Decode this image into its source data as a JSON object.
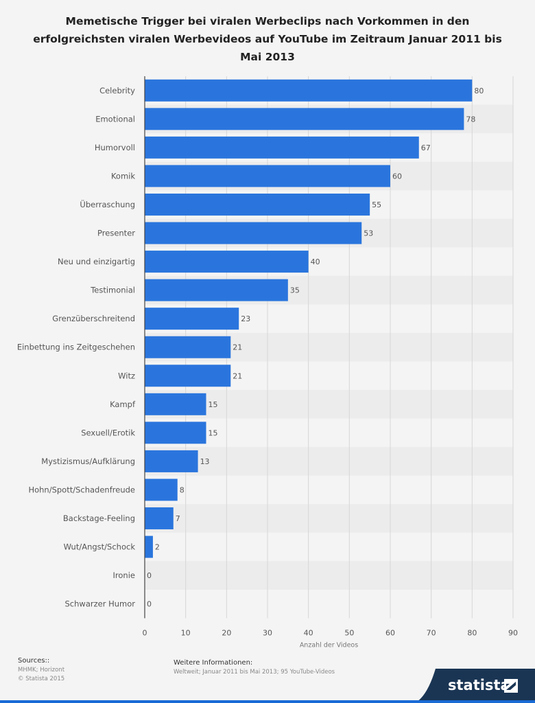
{
  "title": "Memetische Trigger bei viralen Werbeclips nach Vorkommen in den erfolgreichsten viralen Werbevideos auf YouTube im Zeitraum Januar 2011 bis Mai 2013",
  "colors": {
    "bar": "#2a75dd",
    "band": "#ececec",
    "grid": "#d6d6d6",
    "brand": "#1a3554"
  },
  "chart_data": {
    "type": "bar",
    "orientation": "horizontal",
    "categories": [
      "Celebrity",
      "Emotional",
      "Humorvoll",
      "Komik",
      "Überraschung",
      "Presenter",
      "Neu und einzigartig",
      "Testimonial",
      "Grenzüberschreitend",
      "Einbettung ins Zeitgeschehen",
      "Witz",
      "Kampf",
      "Sexuell/Erotik",
      "Mystizismus/Aufklärung",
      "Hohn/Spott/Schadenfreude",
      "Backstage-Feeling",
      "Wut/Angst/Schock",
      "Ironie",
      "Schwarzer Humor"
    ],
    "values": [
      80,
      78,
      67,
      60,
      55,
      53,
      40,
      35,
      23,
      21,
      21,
      15,
      15,
      13,
      8,
      7,
      2,
      0,
      0
    ],
    "xlabel": "Anzahl der Videos",
    "xlim": [
      0,
      90
    ],
    "xticks": [
      0,
      10,
      20,
      30,
      40,
      50,
      60,
      70,
      80,
      90
    ],
    "grid": true,
    "legend": "none"
  },
  "footer": {
    "sources_heading": "Sources::",
    "sources_lines": [
      "MHMK; Horizont",
      "© Statista 2015"
    ],
    "info_heading": "Weitere Informationen:",
    "info_text": "Weltweit; Januar 2011 bis Mai 2013; 95 YouTube-Videos"
  },
  "brand": {
    "name": "statista"
  }
}
